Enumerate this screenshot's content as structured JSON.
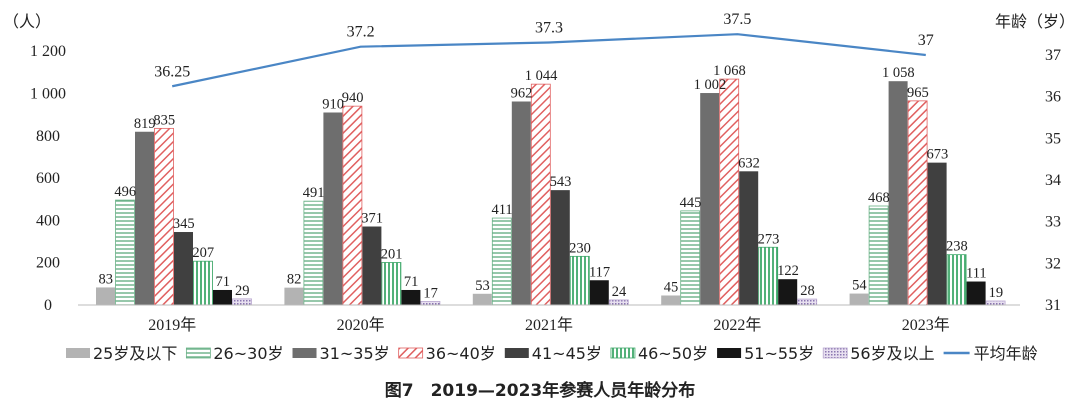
{
  "chart_data": {
    "type": "bar",
    "title": "",
    "left_axis_unit": "（人）",
    "right_axis_unit": "年龄（岁）",
    "categories": [
      "2019年",
      "2020年",
      "2021年",
      "2022年",
      "2023年"
    ],
    "ylim": [
      0,
      1300
    ],
    "yticks": [
      0,
      200,
      400,
      600,
      800,
      1000,
      1200
    ],
    "ytick_labels": [
      "0",
      "200",
      "400",
      "600",
      "800",
      "1 000",
      "1 200"
    ],
    "y2lim": [
      31,
      37.6
    ],
    "y2ticks": [
      31,
      32,
      33,
      34,
      35,
      36,
      37
    ],
    "y2tick_labels": [
      "31",
      "32",
      "33",
      "34",
      "35",
      "36",
      "37"
    ],
    "series": [
      {
        "name": "25岁及以下",
        "values": [
          83,
          82,
          53,
          45,
          54
        ],
        "labels": [
          "83",
          "82",
          "53",
          "45",
          "54"
        ],
        "color": "#b3b3b3",
        "pattern": "solid"
      },
      {
        "name": "26~30岁",
        "values": [
          496,
          491,
          411,
          445,
          468
        ],
        "labels": [
          "496",
          "491",
          "411",
          "445",
          "468"
        ],
        "color": "#6ab187",
        "pattern": "hlines"
      },
      {
        "name": "31~35岁",
        "values": [
          819,
          910,
          962,
          1002,
          1058
        ],
        "labels": [
          "819",
          "910",
          "962",
          "1 002",
          "1 058"
        ],
        "color": "#6e6e6e",
        "pattern": "solid"
      },
      {
        "name": "36~40岁",
        "values": [
          835,
          940,
          1044,
          1068,
          965
        ],
        "labels": [
          "835",
          "940",
          "1 044",
          "1 068",
          "965"
        ],
        "color": "#e06060",
        "pattern": "diag"
      },
      {
        "name": "41~45岁",
        "values": [
          345,
          371,
          543,
          632,
          673
        ],
        "labels": [
          "345",
          "371",
          "543",
          "632",
          "673"
        ],
        "color": "#404040",
        "pattern": "solid"
      },
      {
        "name": "46~50岁",
        "values": [
          207,
          201,
          230,
          273,
          238
        ],
        "labels": [
          "207",
          "201",
          "230",
          "273",
          "238"
        ],
        "color": "#3fa86a",
        "pattern": "vlines"
      },
      {
        "name": "51~55岁",
        "values": [
          71,
          71,
          117,
          122,
          111
        ],
        "labels": [
          "71",
          "71",
          "117",
          "122",
          "111"
        ],
        "color": "#161616",
        "pattern": "solid"
      },
      {
        "name": "56岁及以上",
        "values": [
          29,
          17,
          24,
          28,
          19
        ],
        "labels": [
          "29",
          "17",
          "24",
          "28",
          "19"
        ],
        "color": "#b9a8d0",
        "pattern": "dots"
      }
    ],
    "line_series": {
      "name": "平均年龄",
      "values": [
        36.25,
        37.2,
        37.3,
        37.5,
        37
      ],
      "labels": [
        "36.25",
        "37.2",
        "37.3",
        "37.5",
        "37"
      ],
      "color": "#4a86c5",
      "axis": "right"
    },
    "legend_position": "bottom",
    "grid": false
  },
  "caption": "图7　2019—2023年参赛人员年龄分布"
}
